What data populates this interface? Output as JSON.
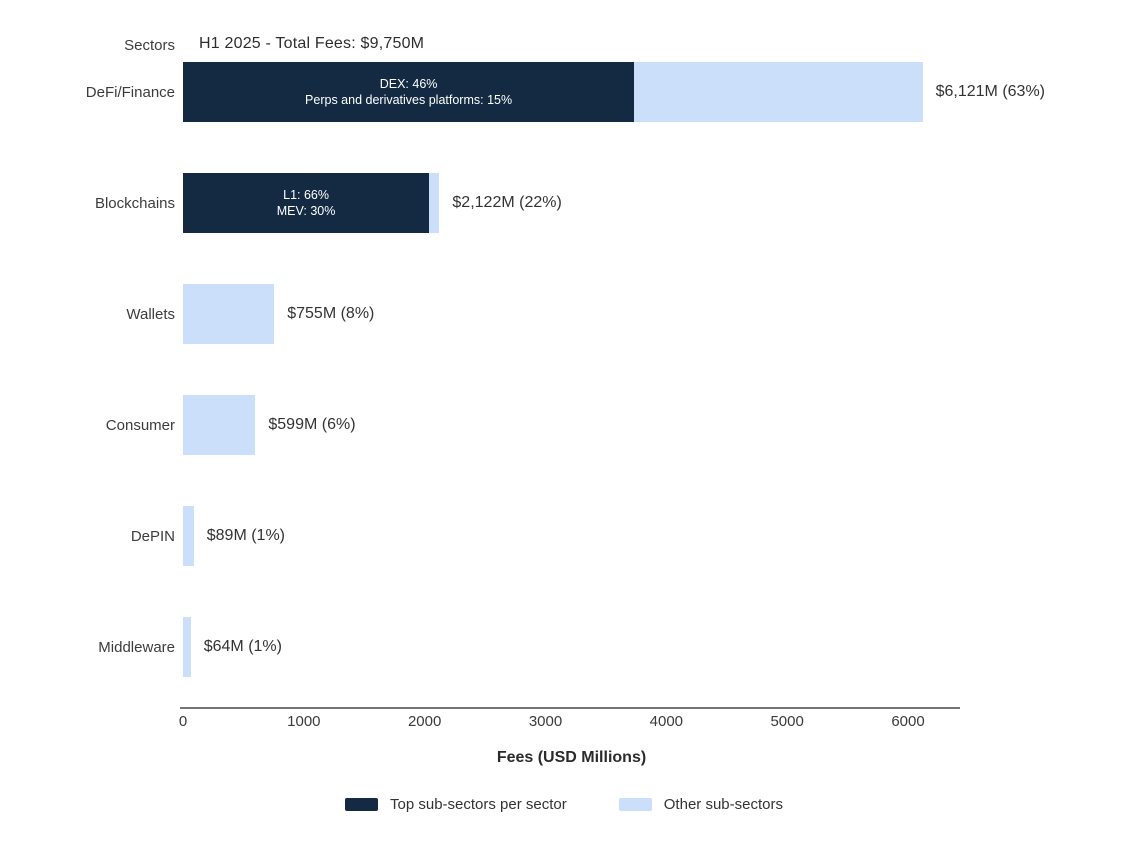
{
  "chart_data": {
    "type": "bar",
    "orientation": "horizontal",
    "stacked": true,
    "title": "H1 2025 - Total Fees: $9,750M",
    "axis_header": "Sectors",
    "xlabel": "Fees (USD Millions)",
    "x_ticks": [
      0,
      1000,
      2000,
      3000,
      4000,
      5000,
      6000
    ],
    "xlim": [
      0,
      6450
    ],
    "grid": false,
    "colors": {
      "top_subsectors": "#132A42",
      "other_subsectors": "#CBDFFA",
      "text": "#333333",
      "axis_line": "#757575"
    },
    "categories": [
      "DeFi/Finance",
      "Blockchains",
      "Wallets",
      "Consumer",
      "DePIN",
      "Middleware"
    ],
    "bars": [
      {
        "sector": "DeFi/Finance",
        "total_musd": 6121,
        "value_label": "$6,121M (63%)",
        "top_subsectors_pct": 61,
        "segment_note_lines": [
          "DEX: 46%",
          "Perps and derivatives platforms: 15%"
        ]
      },
      {
        "sector": "Blockchains",
        "total_musd": 2122,
        "value_label": "$2,122M (22%)",
        "top_subsectors_pct": 96,
        "segment_note_lines": [
          "L1: 66%",
          "MEV: 30%"
        ]
      },
      {
        "sector": "Wallets",
        "total_musd": 755,
        "value_label": "$755M (8%)",
        "top_subsectors_pct": 0,
        "segment_note_lines": []
      },
      {
        "sector": "Consumer",
        "total_musd": 599,
        "value_label": "$599M (6%)",
        "top_subsectors_pct": 0,
        "segment_note_lines": []
      },
      {
        "sector": "DePIN",
        "total_musd": 89,
        "value_label": "$89M (1%)",
        "top_subsectors_pct": 0,
        "segment_note_lines": []
      },
      {
        "sector": "Middleware",
        "total_musd": 64,
        "value_label": "$64M (1%)",
        "top_subsectors_pct": 0,
        "segment_note_lines": []
      }
    ],
    "legend": {
      "position": "bottom-center",
      "items": [
        {
          "label": "Top sub-sectors per sector",
          "color": "#132A42"
        },
        {
          "label": "Other sub-sectors",
          "color": "#CBDFFA"
        }
      ]
    }
  }
}
